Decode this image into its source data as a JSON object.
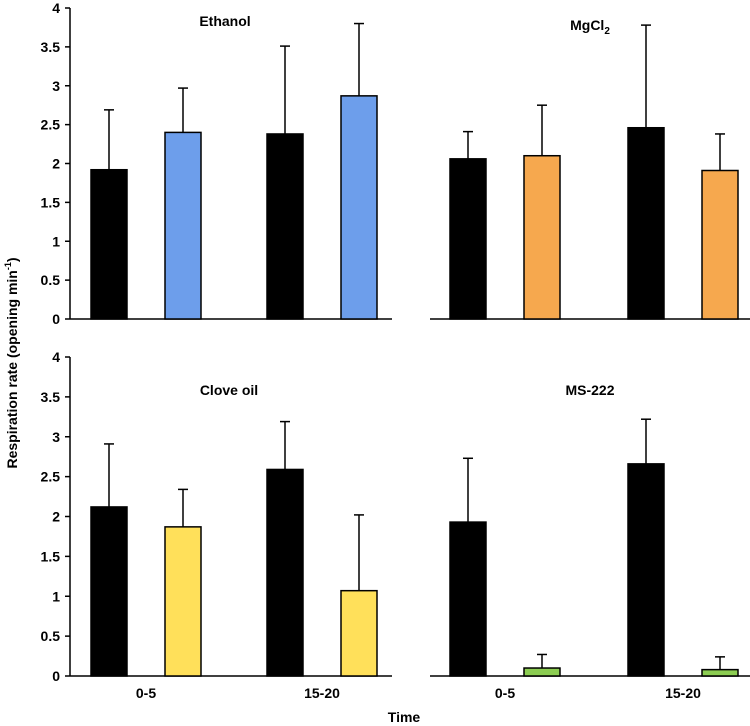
{
  "chart_data": {
    "type": "bar",
    "xlabel": "Time",
    "ylabel": "Respiration rate (opening min",
    "ylabel_sup": "-1",
    "ylabel_close": ")",
    "ylim": [
      0,
      4
    ],
    "yticks": [
      "0",
      "0.5",
      "1",
      "1.5",
      "2",
      "2.5",
      "3",
      "3.5",
      "4"
    ],
    "categories": [
      "0-5",
      "15-20"
    ],
    "control_color": "#000000",
    "panels": [
      {
        "title": "Ethanol",
        "title_sub": "",
        "treatment_color": "#6d9eeb",
        "control": {
          "values": [
            1.92,
            2.38
          ],
          "errors": [
            0.77,
            1.13
          ]
        },
        "treatment": {
          "values": [
            2.4,
            2.87
          ],
          "errors": [
            0.57,
            0.93
          ]
        }
      },
      {
        "title": "MgCl",
        "title_sub": "2",
        "treatment_color": "#f6a84e",
        "control": {
          "values": [
            2.06,
            2.46
          ],
          "errors": [
            0.35,
            1.32
          ]
        },
        "treatment": {
          "values": [
            2.1,
            1.91
          ],
          "errors": [
            0.65,
            0.47
          ]
        }
      },
      {
        "title": "Clove oil",
        "title_sub": "",
        "treatment_color": "#ffe05a",
        "control": {
          "values": [
            2.12,
            2.59
          ],
          "errors": [
            0.79,
            0.6
          ]
        },
        "treatment": {
          "values": [
            1.87,
            1.07
          ],
          "errors": [
            0.47,
            0.95
          ]
        }
      },
      {
        "title": "MS-222",
        "title_sub": "",
        "treatment_color": "#8ccd52",
        "control": {
          "values": [
            1.93,
            2.66
          ],
          "errors": [
            0.8,
            0.56
          ]
        },
        "treatment": {
          "values": [
            0.1,
            0.08
          ],
          "errors": [
            0.17,
            0.16
          ]
        }
      }
    ]
  }
}
